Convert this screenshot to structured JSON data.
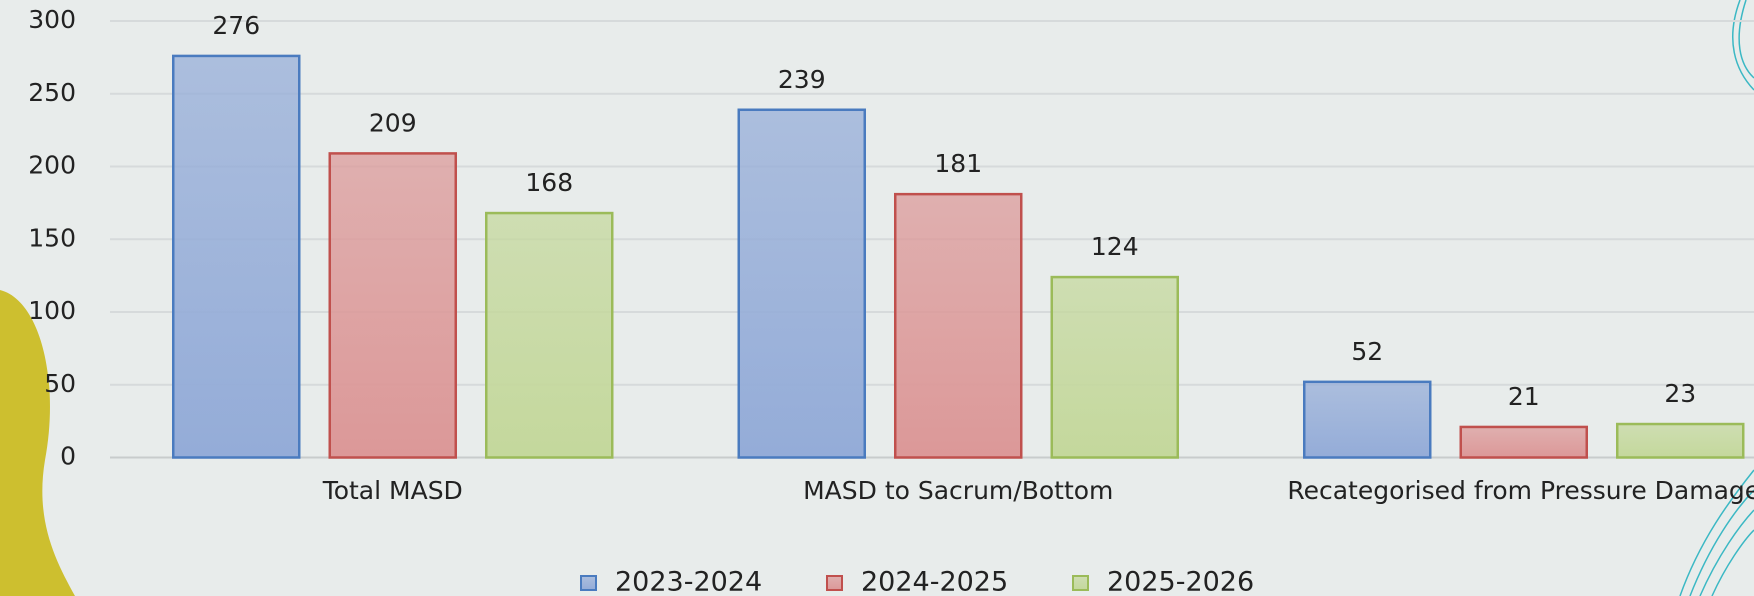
{
  "chart_data": {
    "type": "bar",
    "categories": [
      "Total MASD",
      "MASD to Sacrum/Bottom",
      "Recategorised from Pressure Damage"
    ],
    "series": [
      {
        "name": "2023-2024",
        "color": "#94acd8",
        "border_color": "#4a7bbf",
        "values": [
          276,
          239,
          52
        ]
      },
      {
        "name": "2024-2025",
        "color": "#dc9898",
        "border_color": "#c0504d",
        "values": [
          209,
          181,
          21
        ]
      },
      {
        "name": "2025-2026",
        "color": "#c4d89c",
        "border_color": "#9bbb59",
        "values": [
          168,
          124,
          23
        ]
      }
    ],
    "ylim": [
      0,
      300
    ],
    "yticks": [
      0,
      50,
      100,
      150,
      200,
      250,
      300
    ],
    "grid": true,
    "legend": "bottom"
  }
}
